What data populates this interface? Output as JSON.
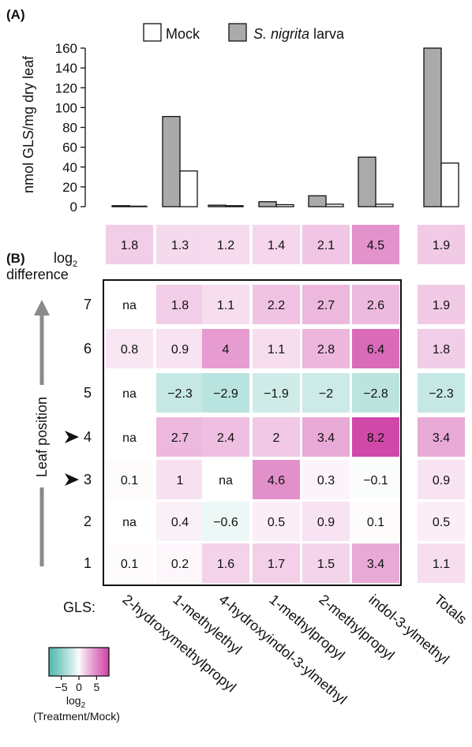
{
  "panel_a_letter": "(A)",
  "panel_b_letter": "(B)",
  "panel_b_heading_line1": "log",
  "panel_b_heading_sub": "2",
  "panel_b_heading_line2": "difference",
  "colorbar": {
    "label_line1": "log",
    "label_sub": "2",
    "label_line2": "(Treatment/Mock)",
    "ticks": [
      -5,
      0,
      5
    ],
    "range": [
      -8.5,
      8.5
    ],
    "negative_color": "#2aa99a",
    "positive_color": "#c41a93",
    "neutral_color": "#ffffff"
  },
  "chart_data": [
    {
      "type": "bar",
      "panel": "A",
      "ylabel": "nmol GLS/mg dry leaf",
      "ylim": [
        0,
        160
      ],
      "yticks": [
        0,
        20,
        40,
        60,
        80,
        100,
        120,
        140,
        160
      ],
      "categories": [
        "2-hydroxymethylpropyl",
        "1-methylethyl",
        "4-hydroxyindol-3-ylmethyl",
        "1-methylpropyl",
        "2-methylpropyl",
        "indol-3-ylmethyl",
        "Totals"
      ],
      "legend_position": "top",
      "series": [
        {
          "name": "S. nigrita larva",
          "color": "#aaaaaa",
          "values": [
            1.0,
            91,
            1.5,
            5,
            11,
            50,
            160
          ]
        },
        {
          "name": "Mock",
          "color": "#ffffff",
          "values": [
            0.5,
            36,
            1.0,
            2,
            2.5,
            2.5,
            44
          ]
        }
      ]
    },
    {
      "type": "heatmap",
      "panel": "B-summary",
      "columns": [
        "2-hydroxymethylpropyl",
        "1-methylethyl",
        "4-hydroxyindol-3-ylmethyl",
        "1-methylpropyl",
        "2-methylpropyl",
        "indol-3-ylmethyl",
        "Totals"
      ],
      "values": [
        1.8,
        1.3,
        1.2,
        1.4,
        2.1,
        4.5,
        1.9
      ]
    },
    {
      "type": "heatmap",
      "panel": "B",
      "ylabel": "Leaf position",
      "xlabel": "GLS:",
      "columns": [
        "2-hydroxymethylpropyl",
        "1-methylethyl",
        "4-hydroxyindol-3-ylmethyl",
        "1-methylpropyl",
        "2-methylpropyl",
        "indol-3-ylmethyl",
        "Totals"
      ],
      "rows": [
        "7",
        "6",
        "5",
        "4",
        "3",
        "2",
        "1"
      ],
      "marked_rows": [
        "4",
        "3"
      ],
      "values": [
        [
          "na",
          1.8,
          1.1,
          2.2,
          2.7,
          2.6,
          1.9
        ],
        [
          0.8,
          0.9,
          4,
          1.1,
          2.8,
          6.4,
          1.8
        ],
        [
          "na",
          -2.3,
          -2.9,
          -1.9,
          -2,
          -2.8,
          -2.3
        ],
        [
          "na",
          2.7,
          2.4,
          2,
          3.4,
          8.2,
          3.4
        ],
        [
          0.1,
          1,
          "na",
          4.6,
          0.3,
          -0.1,
          0.9
        ],
        [
          "na",
          0.4,
          -0.6,
          0.5,
          0.9,
          0.1,
          0.5
        ],
        [
          0.1,
          0.2,
          1.6,
          1.7,
          1.5,
          3.4,
          1.1
        ]
      ]
    }
  ]
}
